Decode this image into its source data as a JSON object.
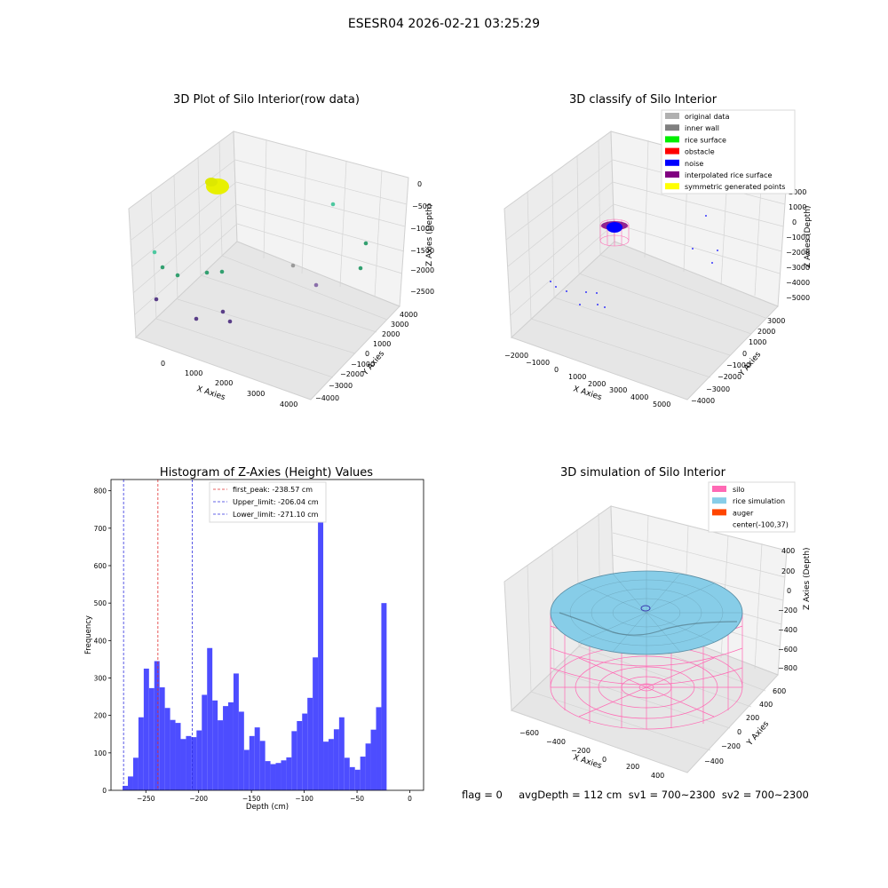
{
  "figure_title": "ESESR04 2026-02-21 03:25:29",
  "status_line": "flag = 0     avgDepth = 112 cm  sv1 = 700~2300  sv2 = 700~2300",
  "chart_data": [
    {
      "type": "scatter",
      "projection": "3d",
      "title": "3D Plot of Silo Interior(row data)",
      "xlabel": "X Axies",
      "ylabel": "Y Axies",
      "zlabel": "Z Axies (Depth)",
      "xticks": [
        "0",
        "1000",
        "2000",
        "3000",
        "4000"
      ],
      "yticks": [
        "−4000",
        "−3000",
        "−2000",
        "−1000",
        "0",
        "1000",
        "2000",
        "3000",
        "4000"
      ],
      "zticks": [
        "0",
        "−500",
        "−1000",
        "−1500",
        "−2000",
        "−2500"
      ],
      "colors": {
        "cluster": "#e8f000",
        "points_light": "#4ec8a0",
        "points_mid": "#33a070",
        "points_dark": "#5a3e88",
        "points_grey": "#9a9a9a"
      }
    },
    {
      "type": "scatter",
      "projection": "3d",
      "title": "3D classify of Silo Interior",
      "xlabel": "X Axies",
      "ylabel": "Y Axies",
      "zlabel": "Z Axies (Depth)",
      "xticks": [
        "−2000",
        "−1000",
        "0",
        "1000",
        "2000",
        "3000",
        "4000",
        "5000"
      ],
      "yticks": [
        "−4000",
        "−3000",
        "−2000",
        "−1000",
        "0",
        "1000",
        "2000",
        "3000"
      ],
      "zticks": [
        "2000",
        "1000",
        "0",
        "−1000",
        "−2000",
        "−3000",
        "−4000",
        "−5000"
      ],
      "legend_position": "top-right",
      "legend": [
        {
          "label": "original data",
          "color": "#b0b0b0"
        },
        {
          "label": "inner wall",
          "color": "#808080"
        },
        {
          "label": "rice surface",
          "color": "#00ee00"
        },
        {
          "label": "obstacle",
          "color": "#ff0000"
        },
        {
          "label": "noise",
          "color": "#0000ff"
        },
        {
          "label": "interpolated rice surface",
          "color": "#800080"
        },
        {
          "label": "symmetric generated points",
          "color": "#ffff00"
        }
      ]
    },
    {
      "type": "bar",
      "title": "Histogram of Z-Axies (Height) Values",
      "xlabel": "Depth (cm)",
      "ylabel": "Frequency",
      "xlim": [
        -283,
        13
      ],
      "ylim": [
        0,
        830
      ],
      "xticks": [
        -250,
        -200,
        -150,
        -100,
        -50,
        0
      ],
      "yticks": [
        0,
        100,
        200,
        300,
        400,
        500,
        600,
        700,
        800
      ],
      "bin_start": -272,
      "bin_width": 5,
      "values": [
        12,
        37,
        87,
        195,
        325,
        273,
        345,
        275,
        220,
        188,
        180,
        137,
        145,
        142,
        160,
        255,
        380,
        240,
        187,
        225,
        235,
        312,
        210,
        108,
        145,
        168,
        132,
        78,
        70,
        73,
        80,
        88,
        158,
        185,
        205,
        247,
        355,
        793,
        130,
        137,
        163,
        195,
        87,
        62,
        55,
        90,
        125,
        162,
        222,
        500
      ],
      "bar_color": "#4d4dff",
      "legend_position": "top-center",
      "reference_lines": [
        {
          "label": "first_peak: -238.57 cm",
          "value": -238.57,
          "color": "#e03030"
        },
        {
          "label": "Upper_limit: -206.04 cm",
          "value": -206.04,
          "color": "#3030e0"
        },
        {
          "label": "Lower_limit: -271.10 cm",
          "value": -271.1,
          "color": "#3030e0"
        }
      ]
    },
    {
      "type": "surface",
      "projection": "3d",
      "title": "3D simulation of Silo Interior",
      "xlabel": "X Axies",
      "ylabel": "Y Axies",
      "zlabel": "Z Axies (Depth)",
      "xticks": [
        "−600",
        "−400",
        "−200",
        "0",
        "200",
        "400"
      ],
      "yticks": [
        "−400",
        "−200",
        "0",
        "200",
        "400",
        "600"
      ],
      "zticks": [
        "400",
        "200",
        "0",
        "−200",
        "−400",
        "−600",
        "−800"
      ],
      "legend_position": "top-right",
      "legend": [
        {
          "label": "silo",
          "color": "#ff69b4"
        },
        {
          "label": "rice simulation",
          "color": "#87cde8"
        },
        {
          "label": "auger",
          "color": "#ff4500"
        },
        {
          "label": "center(-100,37)",
          "color": ""
        }
      ]
    }
  ]
}
